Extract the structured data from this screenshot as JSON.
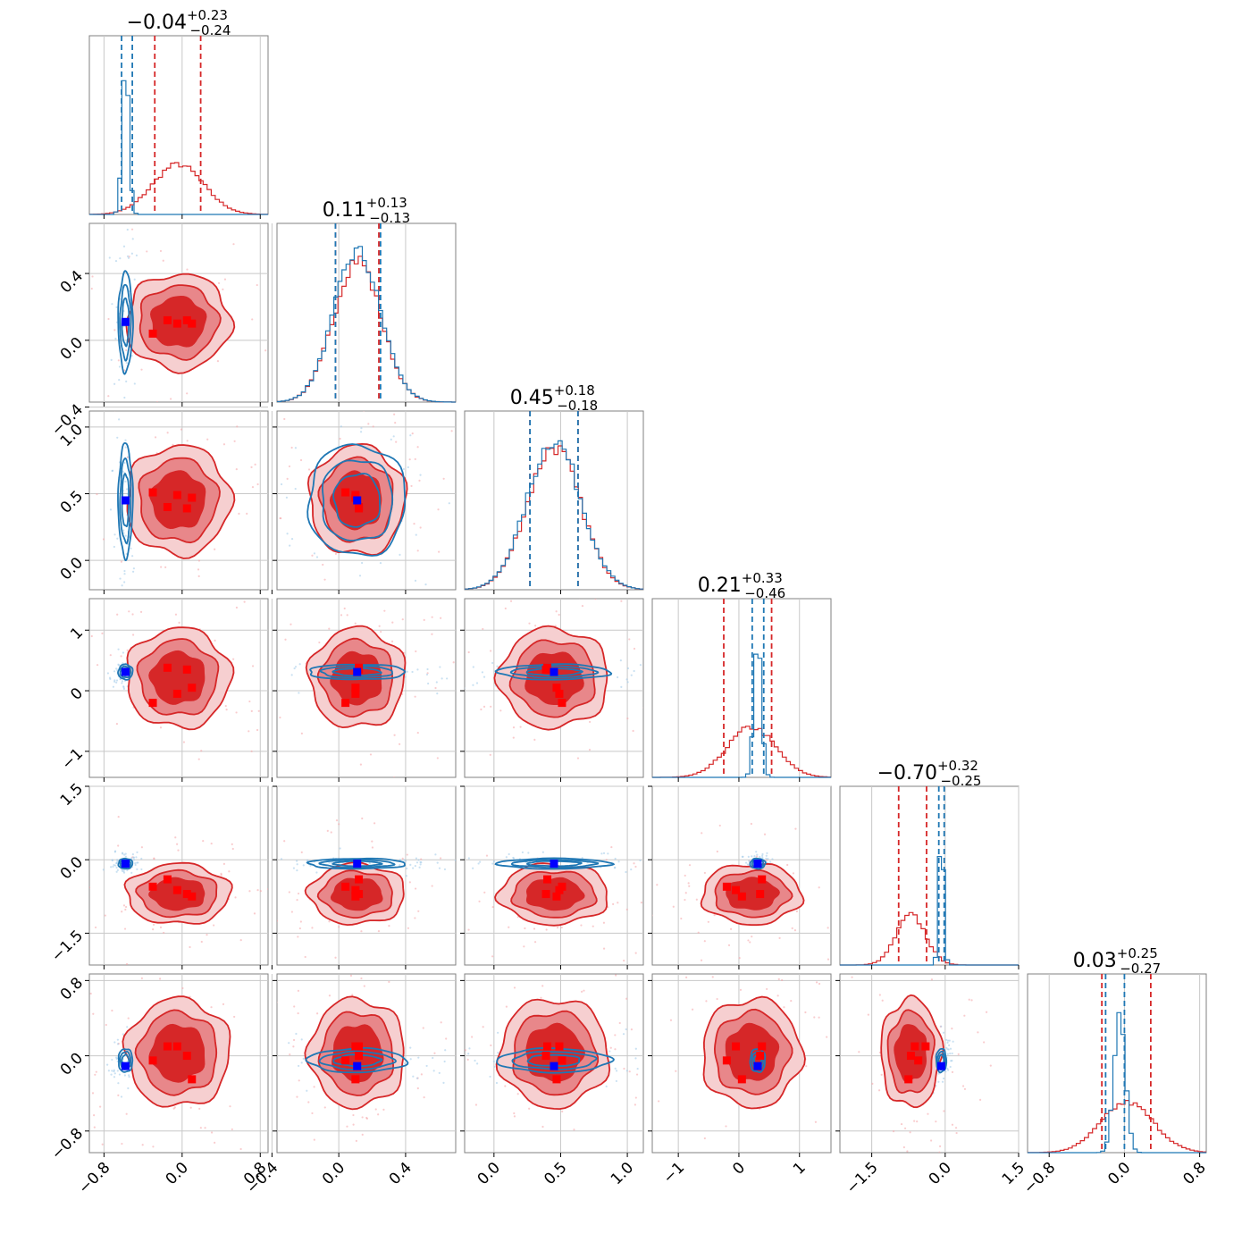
{
  "chart_data": {
    "type": "corner",
    "n_params": 6,
    "grid": true,
    "colors": {
      "red": "#d62728",
      "red_mid": "#e8878a",
      "red_light": "#f6cfd0",
      "blue": "#1f77b4",
      "marker_blue": "#0000ff",
      "marker_red": "#ff0000",
      "axes": "#808080",
      "gridline": "#c8c8c8"
    },
    "titles": [
      {
        "value": "−0.04",
        "upper": "+0.23",
        "lower": "−0.24"
      },
      {
        "value": "0.11",
        "upper": "+0.13",
        "lower": "−0.13"
      },
      {
        "value": "0.45",
        "upper": "+0.18",
        "lower": "−0.18"
      },
      {
        "value": "0.21",
        "upper": "+0.33",
        "lower": "−0.46"
      },
      {
        "value": "−0.70",
        "upper": "+0.32",
        "lower": "−0.25"
      },
      {
        "value": "0.03",
        "upper": "+0.25",
        "lower": "−0.27"
      }
    ],
    "ranges": [
      [
        -0.95,
        0.88
      ],
      [
        -0.37,
        0.7
      ],
      [
        -0.22,
        1.12
      ],
      [
        -1.43,
        1.52
      ],
      [
        -2.15,
        1.5
      ],
      [
        -1.03,
        0.87
      ]
    ],
    "ticks": [
      [
        {
          "v": -0.8,
          "label": "−0.8"
        },
        {
          "v": 0.0,
          "label": "0.0"
        },
        {
          "v": 0.8,
          "label": "0.8"
        }
      ],
      [
        {
          "v": -0.4,
          "label": "−0.4"
        },
        {
          "v": 0.0,
          "label": "0.0"
        },
        {
          "v": 0.4,
          "label": "0.4"
        }
      ],
      [
        {
          "v": 0.0,
          "label": "0.0"
        },
        {
          "v": 0.5,
          "label": "0.5"
        },
        {
          "v": 1.0,
          "label": "1.0"
        }
      ],
      [
        {
          "v": -1,
          "label": "−1"
        },
        {
          "v": 0,
          "label": "0"
        },
        {
          "v": 1,
          "label": "1"
        }
      ],
      [
        {
          "v": -1.5,
          "label": "−1.5"
        },
        {
          "v": 0.0,
          "label": "0.0"
        },
        {
          "v": 1.5,
          "label": "1.5"
        }
      ],
      [
        {
          "v": -0.8,
          "label": "−0.8"
        },
        {
          "v": 0.0,
          "label": "0.0"
        },
        {
          "v": 0.8,
          "label": "0.8"
        }
      ]
    ],
    "series": [
      {
        "key": "red",
        "medians": [
          -0.04,
          0.11,
          0.45,
          0.21,
          -0.7,
          0.03
        ],
        "widths": [
          0.26,
          0.14,
          0.2,
          0.4,
          0.3,
          0.28
        ],
        "quantiles": [
          [
            -0.28,
            0.19
          ],
          [
            -0.02,
            0.24
          ],
          [
            0.27,
            0.63
          ],
          [
            -0.25,
            0.54
          ],
          [
            -0.95,
            -0.38
          ],
          [
            -0.24,
            0.28
          ]
        ]
      },
      {
        "key": "blue",
        "medians": [
          -0.58,
          0.11,
          0.45,
          0.31,
          -0.08,
          -0.05
        ],
        "widths": [
          0.035,
          0.14,
          0.2,
          0.06,
          0.05,
          0.06
        ],
        "quantiles": [
          [
            -0.62,
            -0.51
          ],
          [
            -0.02,
            0.25
          ],
          [
            0.27,
            0.63
          ],
          [
            0.22,
            0.41
          ],
          [
            -0.13,
            -0.02
          ],
          [
            -0.2,
            0.0
          ]
        ]
      }
    ],
    "truth_blue": [
      -0.58,
      0.11,
      0.45,
      0.31,
      -0.08,
      -0.11
    ],
    "truth_red": [
      [
        -0.3,
        -0.15,
        0.05,
        -0.05,
        0.1
      ],
      [
        0.04,
        0.12,
        0.12,
        0.1,
        0.1
      ],
      [
        0.51,
        0.4,
        0.39,
        0.49,
        0.47
      ],
      [
        -0.2,
        0.38,
        0.35,
        -0.05,
        0.05
      ],
      [
        -0.55,
        -0.4,
        -0.7,
        -0.62,
        -0.75
      ],
      [
        -0.05,
        0.1,
        0.0,
        0.1,
        -0.25
      ]
    ]
  }
}
